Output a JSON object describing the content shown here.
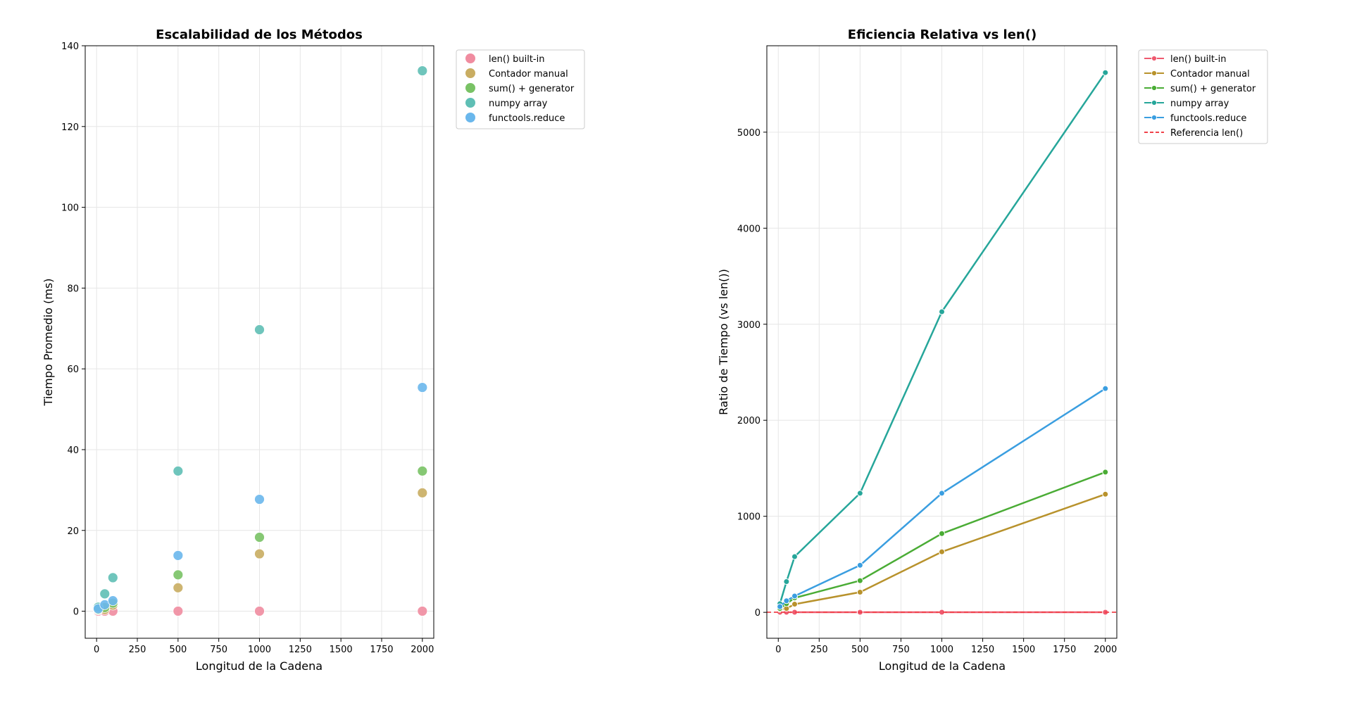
{
  "chart_data": [
    {
      "type": "scatter",
      "title": "Escalabilidad de los Métodos",
      "xlabel": "Longitud de la Cadena",
      "ylabel": "Tiempo Promedio (ms)",
      "xlim": [
        -70,
        2070
      ],
      "ylim": [
        -6.7,
        140
      ],
      "xticks": [
        0,
        250,
        500,
        750,
        1000,
        1250,
        1500,
        1750,
        2000
      ],
      "yticks": [
        0,
        20,
        40,
        60,
        80,
        100,
        120,
        140
      ],
      "grid": true,
      "legend_position": "outside-top-right",
      "x": [
        10,
        50,
        100,
        500,
        1000,
        2000
      ],
      "series": [
        {
          "name": "len() built-in",
          "color": "#f08ca0",
          "values": [
            0.02,
            0.02,
            0.02,
            0.02,
            0.02,
            0.02
          ]
        },
        {
          "name": "Contador manual",
          "color": "#c9ad62",
          "values": [
            0.3,
            0.4,
            1.5,
            5.8,
            14.2,
            29.3
          ]
        },
        {
          "name": "sum() + generator",
          "color": "#79c265",
          "values": [
            0.4,
            0.9,
            2.0,
            9.0,
            18.3,
            34.7
          ]
        },
        {
          "name": "numpy array",
          "color": "#5fbfb5",
          "values": [
            1.0,
            4.3,
            8.3,
            34.7,
            69.7,
            133.8
          ]
        },
        {
          "name": "functools.reduce",
          "color": "#6ab7ec",
          "values": [
            0.6,
            1.6,
            2.6,
            13.8,
            27.7,
            55.4
          ]
        }
      ]
    },
    {
      "type": "line",
      "title": "Eficiencia Relativa vs len()",
      "xlabel": "Longitud de la Cadena",
      "ylabel": "Ratio de Tiempo (vs len())",
      "xlim": [
        -70,
        2070
      ],
      "ylim": [
        -270,
        5900
      ],
      "xticks": [
        0,
        250,
        500,
        750,
        1000,
        1250,
        1500,
        1750,
        2000
      ],
      "yticks": [
        0,
        1000,
        2000,
        3000,
        4000,
        5000
      ],
      "grid": true,
      "legend_position": "outside-top-right",
      "x": [
        10,
        50,
        100,
        500,
        1000,
        2000
      ],
      "series": [
        {
          "name": "len() built-in",
          "color": "#ef5a6f",
          "values": [
            1,
            1,
            1,
            1,
            1,
            1
          ]
        },
        {
          "name": "Contador manual",
          "color": "#b8922c",
          "values": [
            30,
            40,
            85,
            210,
            630,
            1230
          ]
        },
        {
          "name": "sum() + generator",
          "color": "#4aac35",
          "values": [
            40,
            90,
            150,
            330,
            820,
            1460
          ]
        },
        {
          "name": "numpy array",
          "color": "#26a69a",
          "values": [
            90,
            320,
            580,
            1240,
            3130,
            5620
          ]
        },
        {
          "name": "functools.reduce",
          "color": "#3a9ee0",
          "values": [
            60,
            120,
            170,
            490,
            1240,
            2330
          ]
        }
      ],
      "reference_line": {
        "name": "Referencia len()",
        "y": 1,
        "color": "#f0424a",
        "style": "dashed"
      }
    }
  ]
}
